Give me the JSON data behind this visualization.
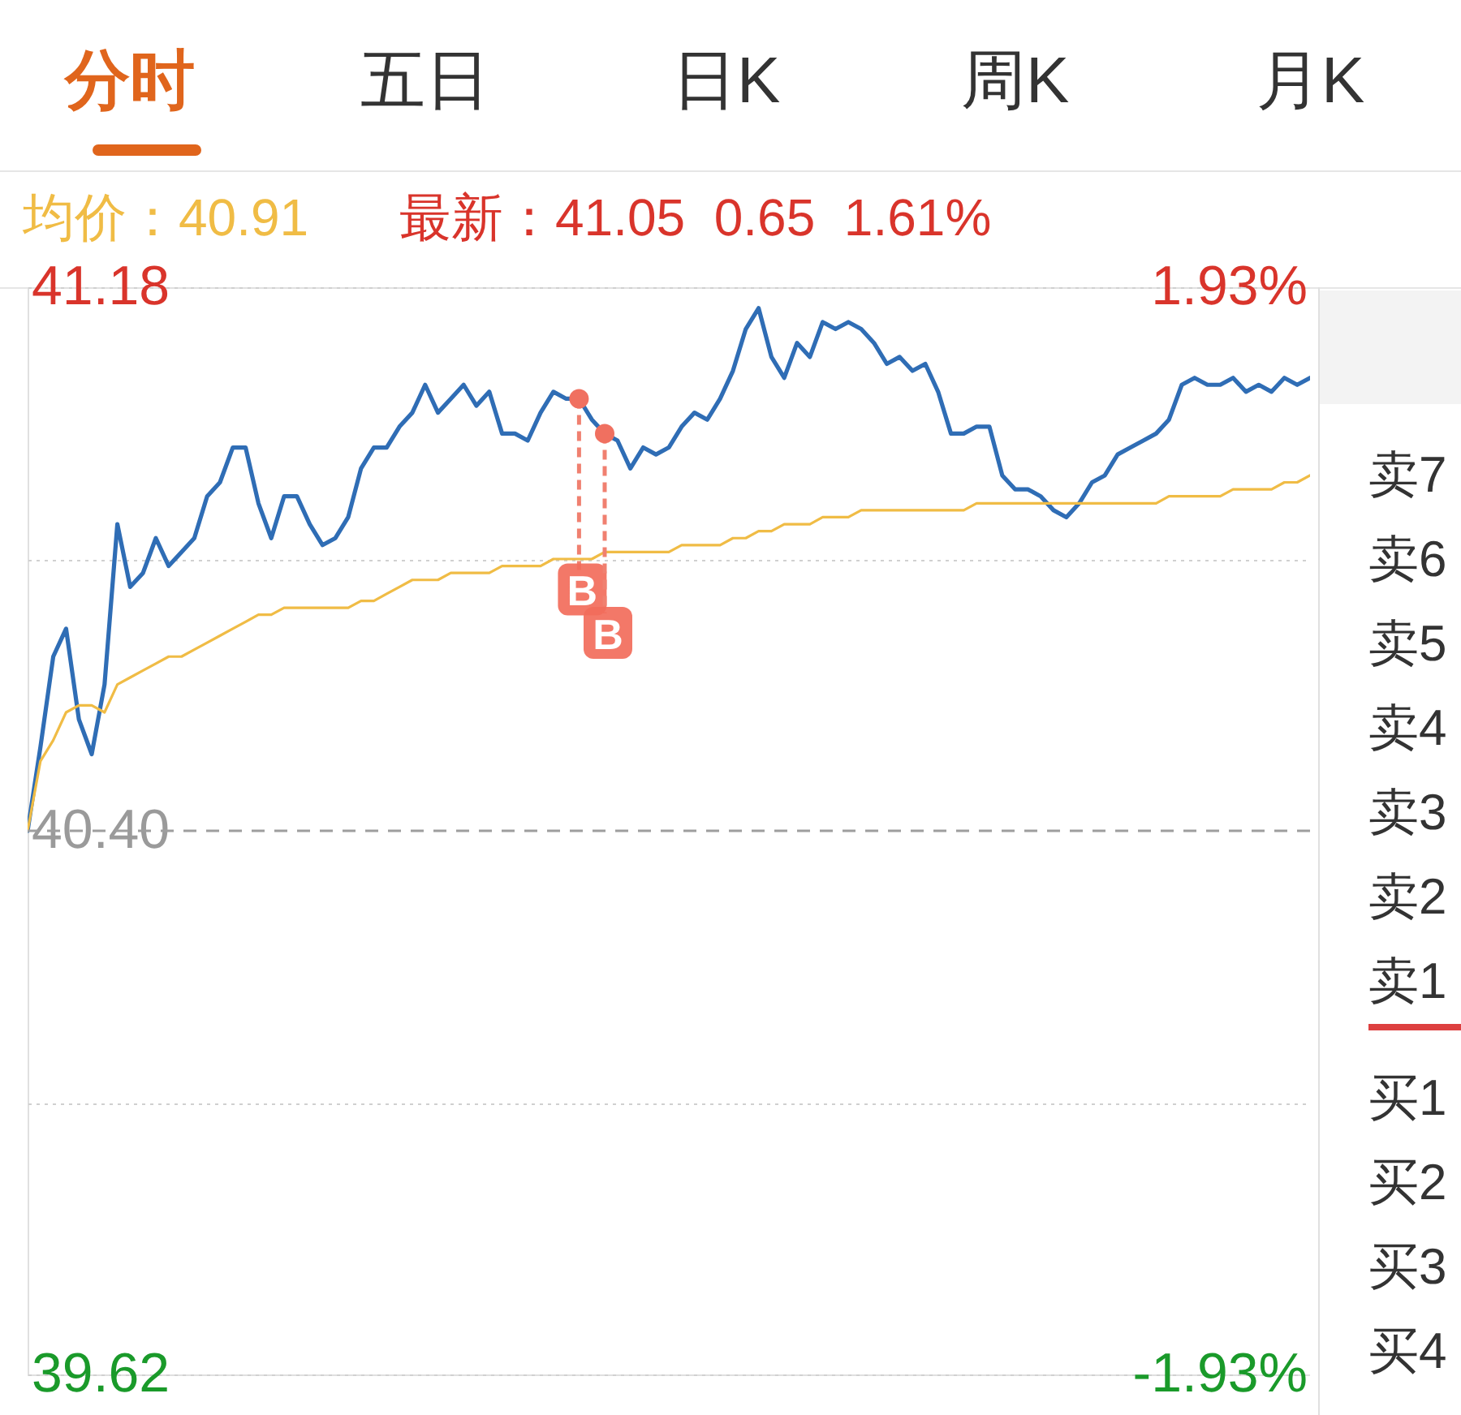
{
  "chart_data": {
    "type": "line",
    "categories": [
      null,
      null,
      null,
      null,
      null,
      null,
      null,
      null,
      null,
      null,
      null,
      null,
      null,
      null,
      null,
      null,
      null,
      null,
      null,
      null,
      null,
      null,
      null,
      null,
      null,
      null,
      null,
      null,
      null,
      null,
      null,
      null,
      null,
      null,
      null,
      null,
      null,
      null,
      null,
      null,
      null,
      null,
      null,
      null,
      null,
      null,
      null,
      null,
      null,
      null,
      null,
      null,
      null,
      null,
      null,
      null,
      null,
      null,
      null,
      null,
      null,
      null,
      null,
      null,
      null,
      null,
      null,
      null,
      null,
      null,
      null,
      null,
      null,
      null,
      null,
      null,
      null,
      null,
      null,
      null,
      null,
      null,
      null,
      null,
      null,
      null,
      null,
      null,
      null,
      null,
      null,
      null,
      null,
      null,
      null,
      null,
      null,
      null,
      null,
      null,
      null
    ],
    "series": [
      {
        "color": "#2f6db5",
        "values": [
          40.4,
          40.52,
          40.65,
          40.69,
          40.56,
          40.51,
          40.61,
          40.84,
          40.75,
          40.77,
          40.82,
          40.78,
          40.8,
          40.82,
          40.88,
          40.9,
          40.95,
          40.95,
          40.87,
          40.82,
          40.88,
          40.88,
          40.84,
          40.81,
          40.82,
          40.85,
          40.92,
          40.95,
          40.95,
          40.98,
          41.0,
          41.04,
          41.0,
          41.02,
          41.04,
          41.01,
          41.03,
          40.97,
          40.97,
          40.96,
          41.0,
          41.03,
          41.02,
          41.02,
          40.99,
          40.97,
          40.96,
          40.92,
          40.95,
          40.94,
          40.95,
          40.98,
          41.0,
          40.99,
          41.02,
          41.06,
          41.12,
          41.15,
          41.08,
          41.05,
          41.1,
          41.08,
          41.13,
          41.12,
          41.13,
          41.12,
          41.1,
          41.07,
          41.08,
          41.06,
          41.07,
          41.03,
          40.97,
          40.97,
          40.98,
          40.98,
          40.91,
          40.89,
          40.89,
          40.88,
          40.86,
          40.85,
          40.87,
          40.9,
          40.91,
          40.94,
          40.95,
          40.96,
          40.97,
          40.99,
          41.04,
          41.05,
          41.04,
          41.04,
          41.05,
          41.03,
          41.04,
          41.03,
          41.05,
          41.04,
          41.05
        ]
      },
      {
        "color": "#f0bc45",
        "values": [
          40.4,
          40.5,
          40.53,
          40.57,
          40.58,
          40.58,
          40.57,
          40.61,
          40.62,
          40.63,
          40.64,
          40.65,
          40.65,
          40.66,
          40.67,
          40.68,
          40.69,
          40.7,
          40.71,
          40.71,
          40.72,
          40.72,
          40.72,
          40.72,
          40.72,
          40.72,
          40.73,
          40.73,
          40.74,
          40.75,
          40.76,
          40.76,
          40.76,
          40.77,
          40.77,
          40.77,
          40.77,
          40.78,
          40.78,
          40.78,
          40.78,
          40.79,
          40.79,
          40.79,
          40.79,
          40.8,
          40.8,
          40.8,
          40.8,
          40.8,
          40.8,
          40.81,
          40.81,
          40.81,
          40.81,
          40.82,
          40.82,
          40.83,
          40.83,
          40.84,
          40.84,
          40.84,
          40.85,
          40.85,
          40.85,
          40.86,
          40.86,
          40.86,
          40.86,
          40.86,
          40.86,
          40.86,
          40.86,
          40.86,
          40.87,
          40.87,
          40.87,
          40.87,
          40.87,
          40.87,
          40.87,
          40.87,
          40.87,
          40.87,
          40.87,
          40.87,
          40.87,
          40.87,
          40.87,
          40.88,
          40.88,
          40.88,
          40.88,
          40.88,
          40.89,
          40.89,
          40.89,
          40.89,
          40.9,
          40.9,
          40.91
        ]
      }
    ],
    "ylim": [
      39.62,
      41.18
    ],
    "yticks": [
      41.18,
      {
        "value": 40.79,
        "label": null
      },
      {
        "value": 40.4,
        "label": "40.40"
      },
      {
        "value": 40.01,
        "label": null
      },
      39.62
    ],
    "y2lim": [
      -1.93,
      1.93
    ],
    "y2ticks": [
      {
        "value": 1.93,
        "label": "1.93%"
      },
      {
        "value": -1.93,
        "label": "-1.93%"
      }
    ],
    "ref_lines": [
      {
        "axis": "y",
        "value": 40.4,
        "color": "#9e9e9e",
        "line_style": "dashed"
      }
    ],
    "grid": true,
    "tick_labels": "y",
    "annotations": [
      "分时",
      "五日",
      "日K",
      "周K",
      "月K",
      "均价：40.91",
      "最新：41.05  0.65  1.61%",
      "卖7",
      "卖6",
      "卖5",
      "卖4",
      "卖3",
      "卖2",
      "卖1",
      "买1",
      "买2",
      "买3",
      "买4",
      "B",
      "B"
    ]
  }
}
